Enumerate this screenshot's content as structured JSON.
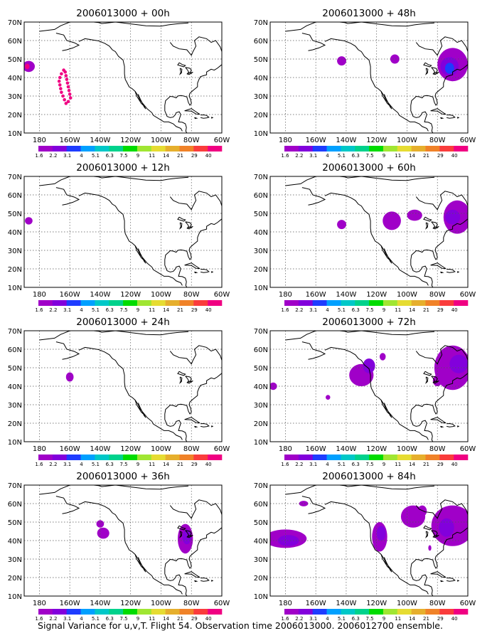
{
  "footer": "Signal Variance for u,v,T. Flight 54. Observation time 2006013000. 2006012700 ensemble.",
  "colorbar": {
    "labels": [
      "1.6",
      "2.2",
      "3.1",
      "4",
      "5.1",
      "6.3",
      "7.5",
      "9",
      "11",
      "14",
      "21",
      "29",
      "40"
    ],
    "colors": [
      "#a000c8",
      "#8200dc",
      "#1e3cff",
      "#00a0ff",
      "#00c8c8",
      "#00d28c",
      "#00dc00",
      "#a0e632",
      "#e6dc32",
      "#e6af2d",
      "#f08228",
      "#fa3c3c",
      "#f00082"
    ]
  },
  "axes": {
    "lat_labels": [
      "70N",
      "60N",
      "50N",
      "40N",
      "30N",
      "20N",
      "10N"
    ],
    "lon_labels": [
      "180",
      "160W",
      "140W",
      "120W",
      "100W",
      "80W",
      "60W"
    ]
  },
  "panels": [
    {
      "title": "2006013000 + 00h"
    },
    {
      "title": "2006013000 + 48h"
    },
    {
      "title": "2006013000 + 12h"
    },
    {
      "title": "2006013000 + 60h"
    },
    {
      "title": "2006013000 + 24h"
    },
    {
      "title": "2006013000 + 72h"
    },
    {
      "title": "2006013000 + 36h"
    },
    {
      "title": "2006013000 + 84h"
    }
  ]
}
